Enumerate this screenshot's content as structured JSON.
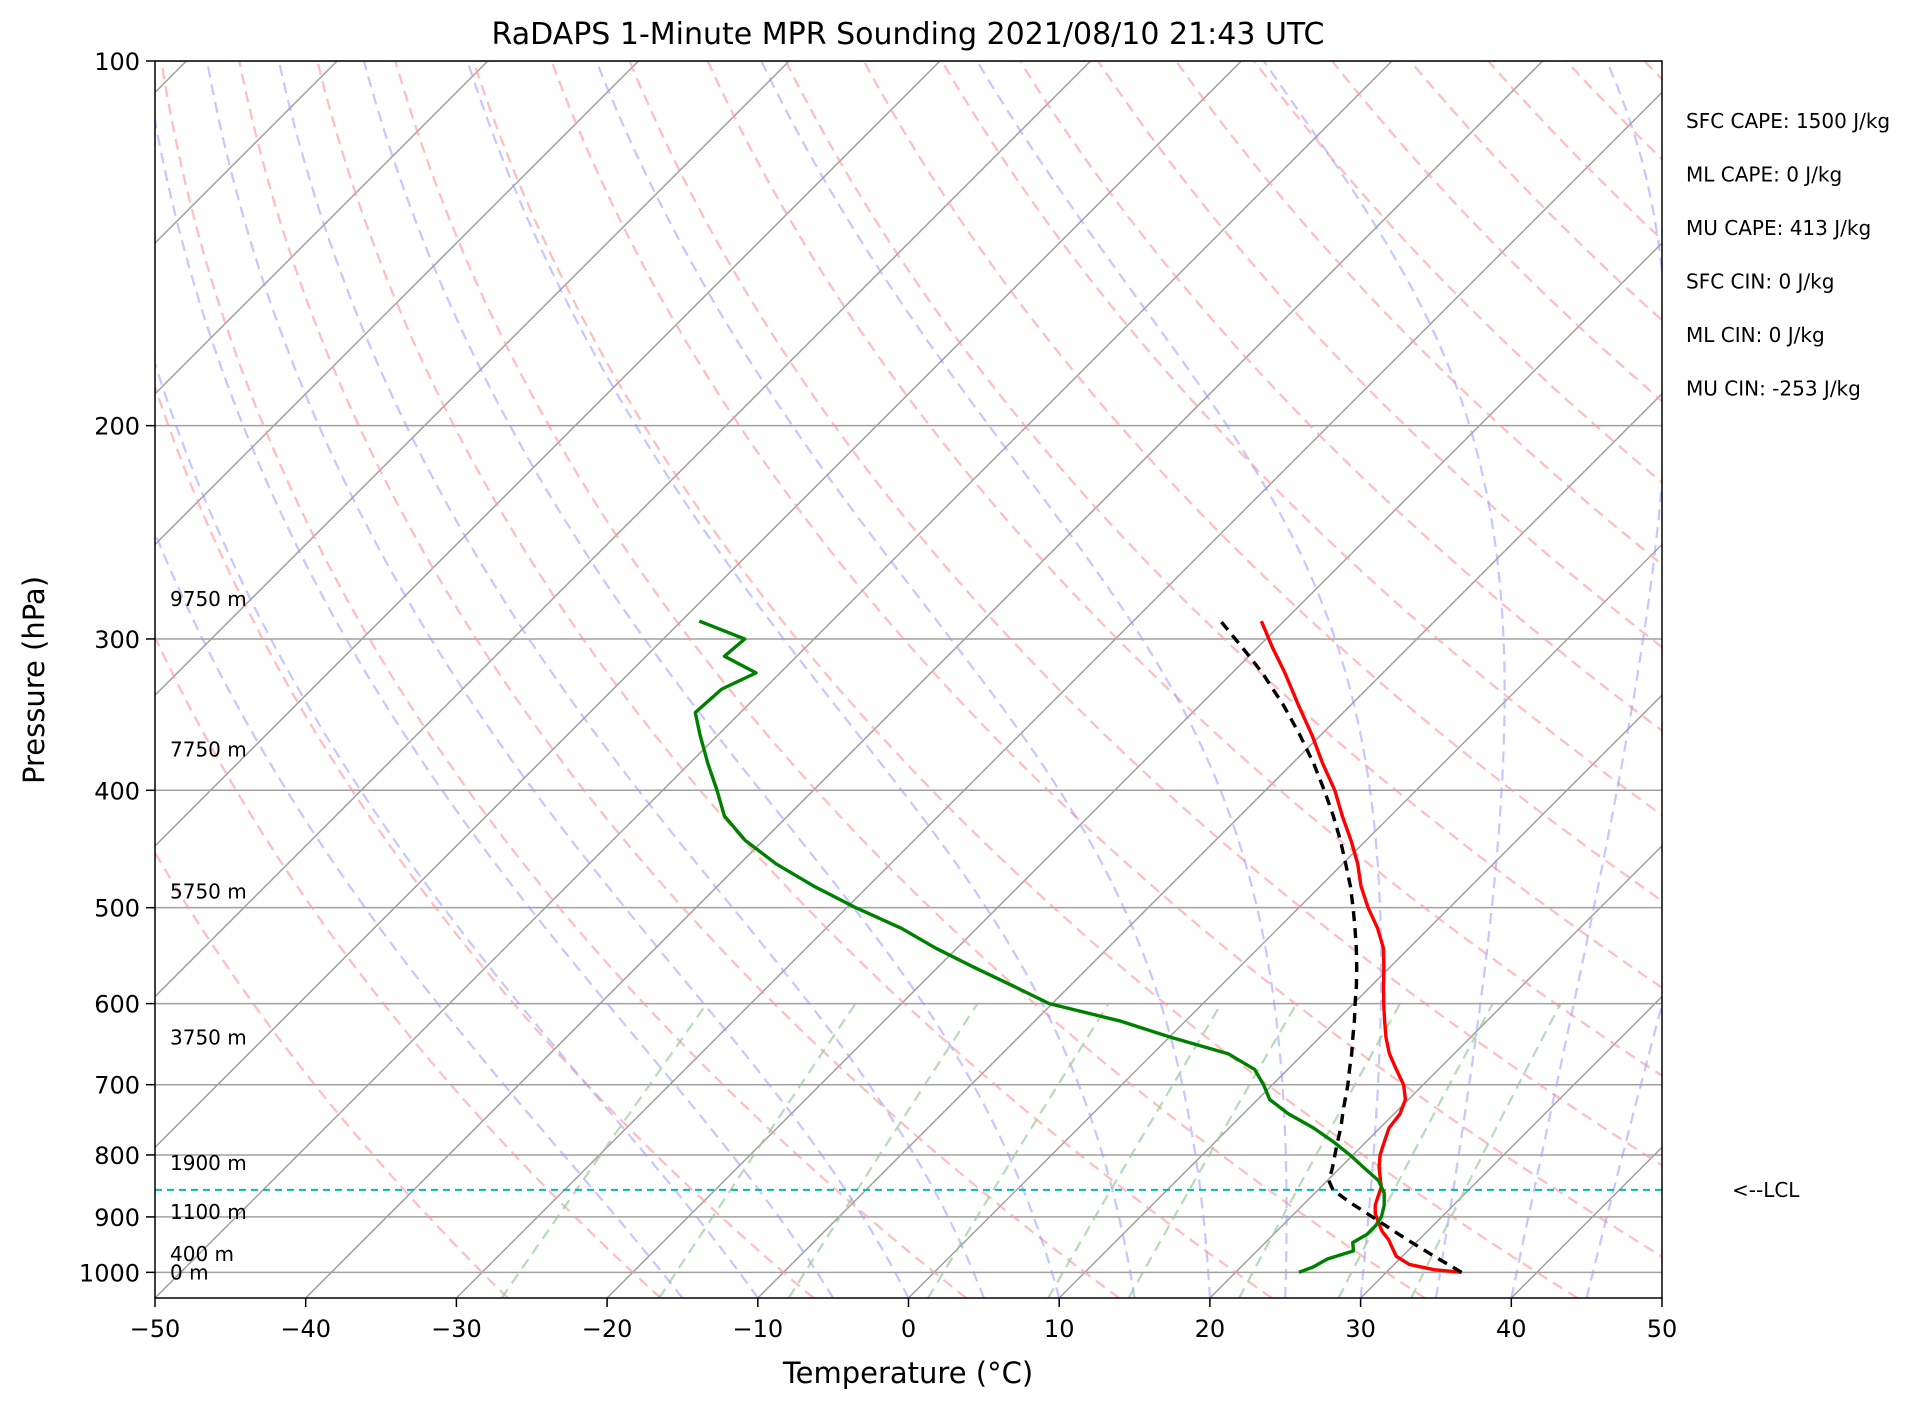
{
  "chart_data": {
    "type": "line",
    "title": "RaDAPS 1-Minute MPR Sounding 2021/08/10 21:43 UTC",
    "xlabel": "Temperature (°C)",
    "ylabel": "Pressure (hPa)",
    "xlim": [
      -50,
      50
    ],
    "ylim": [
      1050,
      100
    ],
    "y_scale": "log",
    "grid": true,
    "x_ticks": [
      -50,
      -40,
      -30,
      -20,
      -10,
      0,
      10,
      20,
      30,
      40,
      50
    ],
    "x_tick_labels": [
      "−50",
      "−40",
      "−30",
      "−20",
      "−10",
      "0",
      "10",
      "20",
      "30",
      "40",
      "50"
    ],
    "y_ticks": [
      1000,
      900,
      800,
      700,
      600,
      500,
      400,
      300,
      200,
      100
    ],
    "y_tick_labels": [
      "1000",
      "900",
      "800",
      "700",
      "600",
      "500",
      "400",
      "300",
      "200",
      "100"
    ],
    "series": [
      {
        "color": "#ff0000",
        "p": [
          1000,
          995,
          985,
          970,
          955,
          940,
          925,
          910,
          895,
          880,
          865,
          850,
          835,
          820,
          800,
          780,
          760,
          740,
          720,
          700,
          680,
          660,
          640,
          620,
          600,
          580,
          560,
          540,
          520,
          500,
          480,
          460,
          440,
          420,
          400,
          380,
          360,
          340,
          320,
          305,
          290
        ],
        "t": [
          35.0,
          33.0,
          31.0,
          29.6,
          28.8,
          28.0,
          27.0,
          26.2,
          25.4,
          24.8,
          24.4,
          24.0,
          23.3,
          22.6,
          21.8,
          21.2,
          20.6,
          20.4,
          19.8,
          18.7,
          17.2,
          15.7,
          14.4,
          13.2,
          12.0,
          10.8,
          9.6,
          8.3,
          6.6,
          4.6,
          2.7,
          1.0,
          -1.0,
          -3.2,
          -5.4,
          -8.0,
          -10.6,
          -13.5,
          -16.5,
          -19.0,
          -21.5
        ]
      },
      {
        "color": "#008000",
        "p": [
          1000,
          990,
          975,
          960,
          945,
          930,
          915,
          900,
          880,
          860,
          840,
          820,
          800,
          780,
          760,
          740,
          720,
          700,
          680,
          660,
          640,
          620,
          600,
          580,
          560,
          540,
          520,
          500,
          480,
          460,
          440,
          420,
          400,
          380,
          360,
          345,
          330,
          320,
          310,
          300,
          290
        ],
        "t": [
          24.2,
          24.8,
          25.2,
          26.4,
          25.8,
          26.2,
          26.2,
          26.0,
          25.4,
          24.6,
          23.4,
          21.6,
          19.8,
          17.8,
          15.6,
          13.0,
          10.8,
          9.4,
          7.8,
          5.0,
          0.2,
          -4.4,
          -10.2,
          -13.8,
          -17.6,
          -21.4,
          -25.0,
          -29.4,
          -33.6,
          -37.6,
          -41.2,
          -44.2,
          -46.4,
          -48.8,
          -51.2,
          -53.0,
          -52.8,
          -51.6,
          -54.8,
          -54.6,
          -58.8
        ]
      },
      {
        "color": "#000000",
        "dashed": true,
        "p": [
          1000,
          975,
          950,
          925,
          900,
          875,
          855,
          840,
          820,
          800,
          780,
          760,
          740,
          720,
          700,
          680,
          660,
          640,
          620,
          600,
          580,
          560,
          540,
          520,
          500,
          480,
          460,
          440,
          420,
          400,
          380,
          360,
          340,
          320,
          305,
          290
        ],
        "t": [
          35.0,
          32.6,
          30.2,
          27.8,
          25.4,
          22.9,
          21.0,
          20.1,
          19.5,
          18.8,
          18.1,
          17.4,
          16.6,
          15.8,
          15.0,
          14.1,
          13.2,
          12.2,
          11.2,
          10.1,
          9.0,
          7.8,
          6.5,
          5.1,
          3.6,
          2.0,
          0.2,
          -1.7,
          -3.8,
          -6.1,
          -8.6,
          -11.4,
          -14.5,
          -18.0,
          -21.0,
          -24.2
        ]
      }
    ],
    "height_labels": [
      {
        "text": "9750 m",
        "p": 278
      },
      {
        "text": "7750 m",
        "p": 370
      },
      {
        "text": "5750 m",
        "p": 485
      },
      {
        "text": "3750 m",
        "p": 640
      },
      {
        "text": "1900 m",
        "p": 812
      },
      {
        "text": "1100 m",
        "p": 892
      },
      {
        "text": "400 m",
        "p": 966
      },
      {
        "text": "0 m",
        "p": 1000
      }
    ],
    "annotations": [
      "SFC CAPE: 1500 J/kg",
      "ML CAPE: 0 J/kg",
      "MU CAPE: 413 J/kg",
      "SFC CIN: 0 J/kg",
      "ML CIN: 0 J/kg",
      "MU CIN: -253 J/kg"
    ],
    "lcl": {
      "p": 855,
      "label": "<--LCL",
      "color": "#00bbbb"
    },
    "skew": 45,
    "isotherm_color": "#a0a0a0",
    "dry_adiabat_color": "#ff9999",
    "moist_adiabat_color": "#9999ff",
    "mixing_ratio_color": "#99cc99"
  }
}
